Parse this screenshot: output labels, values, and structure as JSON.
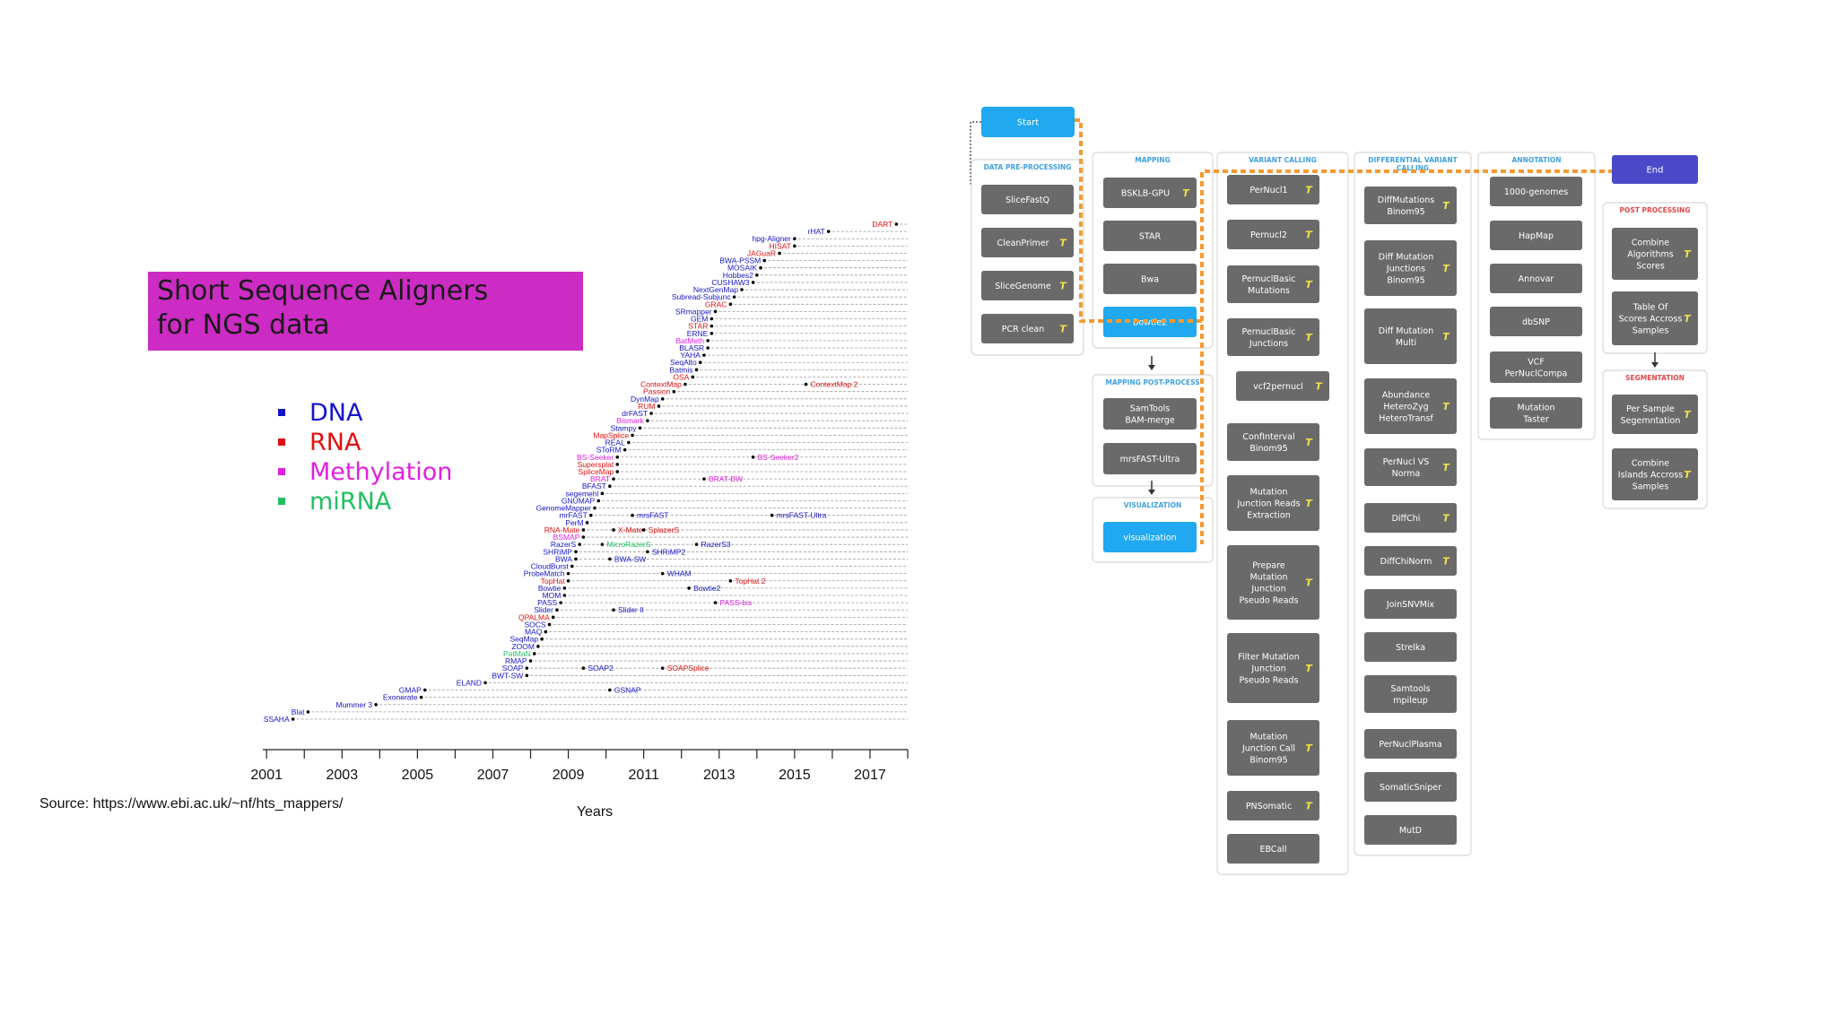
{
  "title": {
    "line1": "Short Sequence Aligners",
    "line2": "for NGS data"
  },
  "legend": [
    {
      "label": "DNA",
      "color": "#1414c8"
    },
    {
      "label": "RNA",
      "color": "#e01010"
    },
    {
      "label": "Methylation",
      "color": "#e020e0"
    },
    {
      "label": "miRNA",
      "color": "#20c060"
    }
  ],
  "source": "Source: https://www.ebi.ac.uk/~nf/hts_mappers/",
  "chart_data": {
    "type": "scatter",
    "xlabel": "Years",
    "xlim": [
      2000.9,
      2018
    ],
    "xticks": [
      2001,
      2002,
      2003,
      2004,
      2005,
      2006,
      2007,
      2008,
      2009,
      2010,
      2011,
      2012,
      2013,
      2014,
      2015,
      2016,
      2017,
      2018
    ],
    "xtick_labels": [
      "2001",
      "2003",
      "2005",
      "2007",
      "2009",
      "2011",
      "2013",
      "2015",
      "2017"
    ],
    "grid": "dashed horizontal lines per tool",
    "colors": {
      "DNA": "#1414c8",
      "RNA": "#e01010",
      "Methylation": "#e020e0",
      "miRNA": "#20c060"
    },
    "tools": [
      {
        "name": "DART",
        "year": 2017.7,
        "type": "RNA"
      },
      {
        "name": "rHAT",
        "year": 2015.9,
        "type": "DNA"
      },
      {
        "name": "hpg-Aligner",
        "year": 2015.0,
        "type": "DNA"
      },
      {
        "name": "HISAT",
        "year": 2015.0,
        "type": "RNA"
      },
      {
        "name": "JAGuaR",
        "year": 2014.6,
        "type": "RNA"
      },
      {
        "name": "BWA-PSSM",
        "year": 2014.2,
        "type": "DNA"
      },
      {
        "name": "MOSAIK",
        "year": 2014.1,
        "type": "DNA"
      },
      {
        "name": "Hobbes2",
        "year": 2014.0,
        "type": "DNA"
      },
      {
        "name": "CUSHAW3",
        "year": 2013.9,
        "type": "DNA"
      },
      {
        "name": "NextGenMap",
        "year": 2013.6,
        "type": "DNA"
      },
      {
        "name": "Subread-Subjunc",
        "year": 2013.4,
        "type": "DNA"
      },
      {
        "name": "GRAC",
        "year": 2013.3,
        "type": "RNA"
      },
      {
        "name": "SRmapper",
        "year": 2012.9,
        "type": "DNA"
      },
      {
        "name": "GEM",
        "year": 2012.8,
        "type": "DNA"
      },
      {
        "name": "STAR",
        "year": 2012.8,
        "type": "RNA"
      },
      {
        "name": "ERNE",
        "year": 2012.8,
        "type": "DNA"
      },
      {
        "name": "BatMeth",
        "year": 2012.7,
        "type": "Methylation"
      },
      {
        "name": "BLASR",
        "year": 2012.7,
        "type": "DNA"
      },
      {
        "name": "YAHA",
        "year": 2012.6,
        "type": "DNA"
      },
      {
        "name": "SeqAlto",
        "year": 2012.5,
        "type": "DNA"
      },
      {
        "name": "Batmis",
        "year": 2012.4,
        "type": "DNA"
      },
      {
        "name": "OSA",
        "year": 2012.3,
        "type": "RNA"
      },
      {
        "name": "ContextMap",
        "year": 2012.1,
        "type": "RNA",
        "later": [
          {
            "name": "ContextMap 2",
            "year": 2015.3
          }
        ]
      },
      {
        "name": "Passion",
        "year": 2011.8,
        "type": "RNA"
      },
      {
        "name": "DynMap",
        "year": 2011.5,
        "type": "DNA"
      },
      {
        "name": "RUM",
        "year": 2011.4,
        "type": "RNA"
      },
      {
        "name": "drFAST",
        "year": 2011.2,
        "type": "DNA"
      },
      {
        "name": "Bismark",
        "year": 2011.1,
        "type": "Methylation"
      },
      {
        "name": "Stampy",
        "year": 2010.9,
        "type": "DNA"
      },
      {
        "name": "MapSplice",
        "year": 2010.7,
        "type": "RNA"
      },
      {
        "name": "REAL",
        "year": 2010.6,
        "type": "DNA"
      },
      {
        "name": "SToRM",
        "year": 2010.5,
        "type": "DNA"
      },
      {
        "name": "BS-Seeker",
        "year": 2010.3,
        "type": "Methylation",
        "later": [
          {
            "name": "BS-Seeker2",
            "year": 2013.9
          }
        ]
      },
      {
        "name": "Supersplat",
        "year": 2010.3,
        "type": "RNA"
      },
      {
        "name": "SpliceMap",
        "year": 2010.3,
        "type": "RNA"
      },
      {
        "name": "BRAT",
        "year": 2010.2,
        "type": "Methylation",
        "later": [
          {
            "name": "BRAT-BW",
            "year": 2012.6
          }
        ]
      },
      {
        "name": "BFAST",
        "year": 2010.1,
        "type": "DNA"
      },
      {
        "name": "segemehl",
        "year": 2009.9,
        "type": "DNA"
      },
      {
        "name": "GNUMAP",
        "year": 2009.8,
        "type": "DNA"
      },
      {
        "name": "GenomeMapper",
        "year": 2009.7,
        "type": "DNA"
      },
      {
        "name": "mrFAST",
        "year": 2009.6,
        "type": "DNA",
        "later": [
          {
            "name": "mrsFAST",
            "year": 2010.7
          },
          {
            "name": "mrsFAST-Ultra",
            "year": 2014.4
          }
        ]
      },
      {
        "name": "PerM",
        "year": 2009.5,
        "type": "DNA"
      },
      {
        "name": "RNA-Mate",
        "year": 2009.4,
        "type": "RNA",
        "later": [
          {
            "name": "X-Mate",
            "year": 2010.2
          },
          {
            "name": "SplazerS",
            "year": 2011.0
          }
        ]
      },
      {
        "name": "BSMAP",
        "year": 2009.4,
        "type": "Methylation"
      },
      {
        "name": "RazerS",
        "year": 2009.3,
        "type": "DNA",
        "later": [
          {
            "name": "MicroRazerS",
            "year": 2009.9,
            "type": "miRNA"
          },
          {
            "name": "RazerS3",
            "year": 2012.4
          }
        ]
      },
      {
        "name": "SHRiMP",
        "year": 2009.2,
        "type": "DNA",
        "later": [
          {
            "name": "SHRiMP2",
            "year": 2011.1
          }
        ]
      },
      {
        "name": "BWA",
        "year": 2009.2,
        "type": "DNA",
        "later": [
          {
            "name": "BWA-SW",
            "year": 2010.1
          }
        ]
      },
      {
        "name": "CloudBurst",
        "year": 2009.1,
        "type": "DNA"
      },
      {
        "name": "ProbeMatch",
        "year": 2009.0,
        "type": "DNA",
        "later": [
          {
            "name": "WHAM",
            "year": 2011.5
          }
        ]
      },
      {
        "name": "TopHat",
        "year": 2009.0,
        "type": "RNA",
        "later": [
          {
            "name": "TopHat 2",
            "year": 2013.3
          }
        ]
      },
      {
        "name": "Bowtie",
        "year": 2008.9,
        "type": "DNA",
        "later": [
          {
            "name": "Bowtie2",
            "year": 2012.2
          }
        ]
      },
      {
        "name": "MOM",
        "year": 2008.9,
        "type": "DNA"
      },
      {
        "name": "PASS",
        "year": 2008.8,
        "type": "DNA",
        "later": [
          {
            "name": "PASS-bis",
            "year": 2012.9,
            "type": "Methylation"
          }
        ]
      },
      {
        "name": "Slider",
        "year": 2008.7,
        "type": "DNA",
        "later": [
          {
            "name": "Slider II",
            "year": 2010.2
          }
        ]
      },
      {
        "name": "QPALMA",
        "year": 2008.6,
        "type": "RNA"
      },
      {
        "name": "SOCS",
        "year": 2008.5,
        "type": "DNA"
      },
      {
        "name": "MAQ",
        "year": 2008.4,
        "type": "DNA"
      },
      {
        "name": "SeqMap",
        "year": 2008.3,
        "type": "DNA"
      },
      {
        "name": "ZOOM",
        "year": 2008.2,
        "type": "DNA"
      },
      {
        "name": "PatMaN",
        "year": 2008.1,
        "type": "miRNA"
      },
      {
        "name": "RMAP",
        "year": 2008.0,
        "type": "DNA"
      },
      {
        "name": "SOAP",
        "year": 2007.9,
        "type": "DNA",
        "later": [
          {
            "name": "SOAP2",
            "year": 2009.4
          },
          {
            "name": "SOAPSplice",
            "year": 2011.5,
            "type": "RNA"
          }
        ]
      },
      {
        "name": "BWT-SW",
        "year": 2007.9,
        "type": "DNA"
      },
      {
        "name": "ELAND",
        "year": 2006.8,
        "type": "DNA"
      },
      {
        "name": "GMAP",
        "year": 2005.2,
        "type": "DNA",
        "later": [
          {
            "name": "GSNAP",
            "year": 2010.1
          }
        ]
      },
      {
        "name": "Exonerate",
        "year": 2005.1,
        "type": "DNA"
      },
      {
        "name": "Mummer 3",
        "year": 2003.9,
        "type": "DNA"
      },
      {
        "name": "Blat",
        "year": 2002.1,
        "type": "DNA"
      },
      {
        "name": "SSAHA",
        "year": 2001.7,
        "type": "DNA"
      }
    ]
  },
  "pipeline": {
    "start": "Start",
    "end": "End",
    "flag_glyph": "T",
    "colors": {
      "start": "#20a8f0",
      "end": "#4a4ac8",
      "box": "#6a6a6a",
      "header_blue": "#3fa0e0",
      "header_red": "#e04848",
      "route": "#f59a30"
    },
    "panels": [
      {
        "title": "DATA PRE-PROCESSING",
        "items": [
          {
            "label": "SliceFastQ",
            "flag": false
          },
          {
            "label": "CleanPrimer",
            "flag": true
          },
          {
            "label": "SliceGenome",
            "flag": true
          },
          {
            "label": "PCR clean",
            "flag": true
          }
        ]
      },
      {
        "title": "MAPPING",
        "items": [
          {
            "label": "BSKLB-GPU",
            "flag": true
          },
          {
            "label": "STAR",
            "flag": false
          },
          {
            "label": "Bwa",
            "flag": false
          },
          {
            "label": "Bowtie2",
            "flag": false,
            "selected": true
          }
        ]
      },
      {
        "title": "MAPPING POST-PROCESS",
        "items": [
          {
            "label": "SamTools\nBAM-merge",
            "flag": false
          },
          {
            "label": "mrsFAST-Ultra",
            "flag": false
          }
        ]
      },
      {
        "title": "VISUALIZATION",
        "items": [
          {
            "label": "visualization",
            "flag": false,
            "selected": true
          }
        ]
      },
      {
        "title": "VARIANT CALLING",
        "items": [
          {
            "label": "PerNucl1",
            "flag": true
          },
          {
            "label": "Pernucl2",
            "flag": true
          },
          {
            "label": "PernuclBasic\nMutations",
            "flag": true
          },
          {
            "label": "PernuclBasic\nJunctions",
            "flag": true
          },
          {
            "label": "vcf2pernucl",
            "flag": true
          },
          {
            "label": "ConfInterval\nBinom95",
            "flag": true
          },
          {
            "label": "Mutation\nJunction Reads\nExtraction",
            "flag": true
          },
          {
            "label": "Prepare\nMutation\nJunction\nPseudo Reads",
            "flag": true
          },
          {
            "label": "Filter Mutation\nJunction\nPseudo Reads",
            "flag": true
          },
          {
            "label": "Mutation\nJunction Call\nBinom95",
            "flag": true
          },
          {
            "label": "PNSomatic",
            "flag": true
          },
          {
            "label": "EBCall",
            "flag": false
          }
        ]
      },
      {
        "title": "DIFFERENTIAL VARIANT\nCALLING",
        "items": [
          {
            "label": "DiffMutations\nBinom95",
            "flag": true
          },
          {
            "label": "Diff Mutation\nJunctions\nBinom95",
            "flag": true
          },
          {
            "label": "Diff Mutation\nMulti",
            "flag": true
          },
          {
            "label": "Abundance\nHeteroZyg\nHeteroTransf",
            "flag": true
          },
          {
            "label": "PerNucl VS\nNorma",
            "flag": true
          },
          {
            "label": "DiffChi",
            "flag": true
          },
          {
            "label": "DiffChiNorm",
            "flag": true
          },
          {
            "label": "JoinSNVMix",
            "flag": false
          },
          {
            "label": "Strelka",
            "flag": false
          },
          {
            "label": "Samtools\nmpileup",
            "flag": false
          },
          {
            "label": "PerNuclPlasma",
            "flag": false
          },
          {
            "label": "SomaticSniper",
            "flag": false
          },
          {
            "label": "MutD",
            "flag": false
          }
        ]
      },
      {
        "title": "ANNOTATION",
        "items": [
          {
            "label": "1000-genomes",
            "flag": false
          },
          {
            "label": "HapMap",
            "flag": false
          },
          {
            "label": "Annovar",
            "flag": false
          },
          {
            "label": "dbSNP",
            "flag": false
          },
          {
            "label": "VCF\nPerNuclCompa",
            "flag": false
          },
          {
            "label": "Mutation\nTaster",
            "flag": false
          }
        ]
      },
      {
        "title": "POST PROCESSING",
        "items": [
          {
            "label": "Combine\nAlgorithms\nScores",
            "flag": true
          },
          {
            "label": "Table Of\nScores Accross\nSamples",
            "flag": true
          }
        ]
      },
      {
        "title": "SEGMENTATION",
        "items": [
          {
            "label": "Per Sample\nSegemntation",
            "flag": true
          },
          {
            "label": "Combine\nIslands Accross\nSamples",
            "flag": true
          }
        ]
      }
    ]
  }
}
